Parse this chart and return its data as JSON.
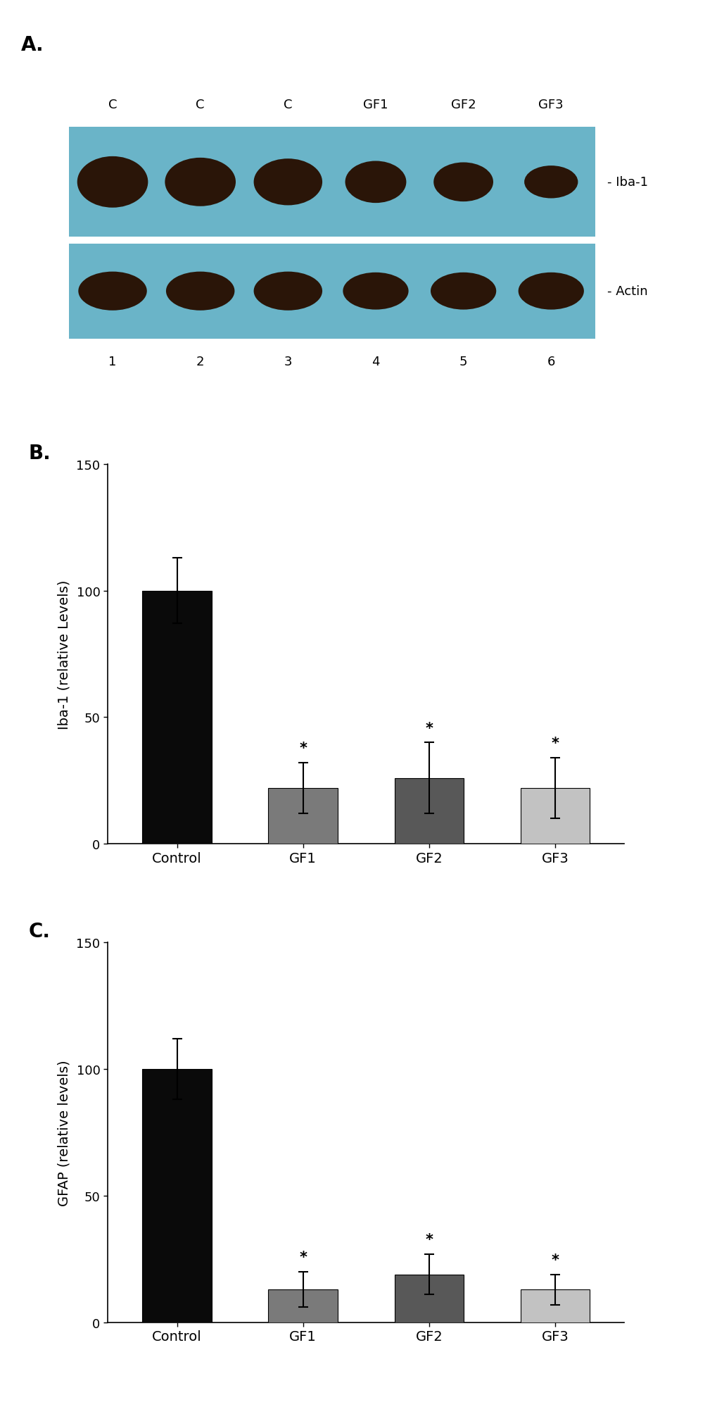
{
  "panel_A": {
    "label": "A.",
    "lane_labels_top": [
      "C",
      "C",
      "C",
      "GF1",
      "GF2",
      "GF3"
    ],
    "lane_labels_bottom": [
      "1",
      "2",
      "3",
      "4",
      "5",
      "6"
    ],
    "band_label_top": "- Iba-1",
    "band_label_bottom": "- Actin",
    "bg_color": "#6ab4c8",
    "band_color": "#2a1508",
    "iba1_widths": [
      0.95,
      0.95,
      0.92,
      0.82,
      0.8,
      0.72
    ],
    "iba1_heights": [
      0.55,
      0.52,
      0.5,
      0.45,
      0.42,
      0.35
    ],
    "actin_widths": [
      0.92,
      0.92,
      0.92,
      0.88,
      0.88,
      0.88
    ],
    "actin_heights": [
      0.48,
      0.48,
      0.48,
      0.46,
      0.46,
      0.46
    ]
  },
  "panel_B": {
    "label": "B.",
    "categories": [
      "Control",
      "GF1",
      "GF2",
      "GF3"
    ],
    "values": [
      100,
      22,
      26,
      22
    ],
    "errors": [
      13,
      10,
      14,
      12
    ],
    "bar_colors": [
      "#0a0a0a",
      "#7a7a7a",
      "#585858",
      "#c2c2c2"
    ],
    "ylabel": "Iba-1 (relative Levels)",
    "ylim": [
      0,
      150
    ],
    "yticks": [
      0,
      50,
      100,
      150
    ],
    "significance": [
      false,
      true,
      true,
      true
    ]
  },
  "panel_C": {
    "label": "C.",
    "categories": [
      "Control",
      "GF1",
      "GF2",
      "GF3"
    ],
    "values": [
      100,
      13,
      19,
      13
    ],
    "errors": [
      12,
      7,
      8,
      6
    ],
    "bar_colors": [
      "#0a0a0a",
      "#7a7a7a",
      "#585858",
      "#c2c2c2"
    ],
    "ylabel": "GFAP (relative levels)",
    "ylim": [
      0,
      150
    ],
    "yticks": [
      0,
      50,
      100,
      150
    ],
    "significance": [
      false,
      true,
      true,
      true
    ]
  },
  "background_color": "#ffffff",
  "label_fontsize": 20,
  "tick_fontsize": 13,
  "axis_label_fontsize": 14
}
